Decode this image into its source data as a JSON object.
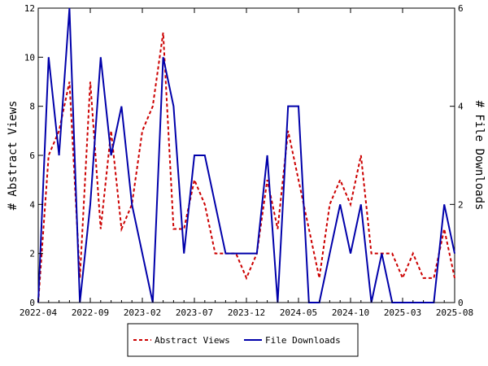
{
  "chart_data": {
    "type": "line",
    "x": [
      "2022-04",
      "2022-05",
      "2022-06",
      "2022-07",
      "2022-08",
      "2022-09",
      "2022-10",
      "2022-11",
      "2022-12",
      "2023-01",
      "2023-02",
      "2023-03",
      "2023-04",
      "2023-05",
      "2023-06",
      "2023-07",
      "2023-08",
      "2023-09",
      "2023-10",
      "2023-11",
      "2023-12",
      "2024-01",
      "2024-02",
      "2024-03",
      "2024-04",
      "2024-05",
      "2024-06",
      "2024-07",
      "2024-08",
      "2024-09",
      "2024-10",
      "2024-11",
      "2024-12",
      "2025-01",
      "2025-02",
      "2025-03",
      "2025-04",
      "2025-05",
      "2025-06",
      "2025-07",
      "2025-08"
    ],
    "x_ticks": [
      "2022-04",
      "2022-09",
      "2023-02",
      "2023-07",
      "2023-12",
      "2024-05",
      "2024-10",
      "2025-03",
      "2025-08"
    ],
    "ylabel": "# Abstract Views",
    "y2label": "# File Downloads",
    "ylim": [
      0,
      12
    ],
    "y_ticks": [
      0,
      2,
      4,
      6,
      8,
      10,
      12
    ],
    "y2lim": [
      0,
      6
    ],
    "y2_ticks": [
      0,
      2,
      4,
      6
    ],
    "grid": false,
    "legend_position": "bottom-center",
    "series": [
      {
        "name": "Abstract Views",
        "axis": "left",
        "color": "#cc0000",
        "style": "dashed",
        "values": [
          0,
          6,
          7,
          9,
          1,
          9,
          3,
          7,
          3,
          4,
          7,
          8,
          11,
          3,
          3,
          5,
          4,
          2,
          2,
          2,
          1,
          2,
          5,
          3,
          7,
          5,
          3,
          1,
          4,
          5,
          4,
          6,
          2,
          2,
          2,
          1,
          2,
          1,
          1,
          3,
          1
        ]
      },
      {
        "name": "File Downloads",
        "axis": "right",
        "color": "#0000aa",
        "style": "solid",
        "values": [
          0,
          5,
          3,
          6,
          0,
          2,
          5,
          3,
          4,
          2,
          1,
          0,
          5,
          4,
          1,
          3,
          3,
          2,
          1,
          1,
          1,
          1,
          3,
          0,
          4,
          4,
          0,
          0,
          1,
          2,
          1,
          2,
          0,
          1,
          0,
          0,
          0,
          0,
          0,
          2,
          1
        ]
      }
    ]
  }
}
